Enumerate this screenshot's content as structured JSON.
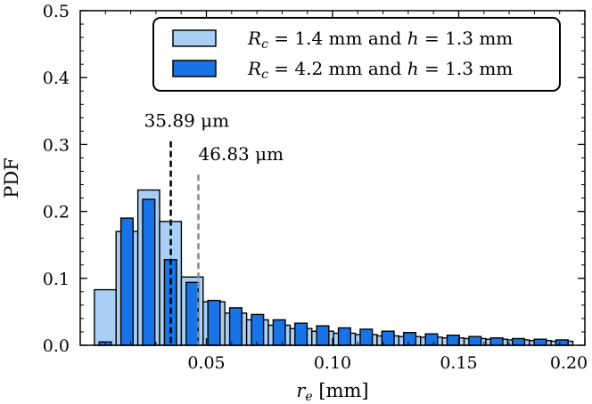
{
  "chart_data": {
    "type": "bar",
    "xlabel": "r_e [mm]",
    "ylabel": "PDF",
    "xlim": [
      0.0,
      0.2
    ],
    "ylim": [
      0.0,
      0.5
    ],
    "xticks": [
      0.05,
      0.1,
      0.15,
      0.2
    ],
    "xtick_labels": [
      "0.05",
      "0.10",
      "0.15",
      "0.20"
    ],
    "yticks": [
      0.0,
      0.1,
      0.2,
      0.3,
      0.4,
      0.5
    ],
    "ytick_labels": [
      "0.0",
      "0.1",
      "0.2",
      "0.3",
      "0.4",
      "0.5"
    ],
    "grid": false,
    "legend_position": "top-right",
    "series": [
      {
        "name": "R_c = 1.4 mm and h = 1.3 mm",
        "color": "#a9cff5",
        "bin_width": 0.00862,
        "bin_start": 0.0056,
        "values": [
          0.083,
          0.17,
          0.232,
          0.185,
          0.102,
          0.065,
          0.048,
          0.038,
          0.03,
          0.025,
          0.021,
          0.018,
          0.016,
          0.014,
          0.013,
          0.012,
          0.011,
          0.01,
          0.009,
          0.008,
          0.007,
          0.006
        ]
      },
      {
        "name": "R_c = 4.2 mm and h = 1.3 mm",
        "color": "#1874e6",
        "bin_width": 0.00862,
        "bin_start": 0.0056,
        "values": [
          0.005,
          0.19,
          0.218,
          0.128,
          0.094,
          0.067,
          0.056,
          0.046,
          0.038,
          0.033,
          0.029,
          0.026,
          0.024,
          0.021,
          0.019,
          0.017,
          0.015,
          0.013,
          0.011,
          0.01,
          0.009,
          0.008
        ]
      }
    ],
    "annotations": [
      {
        "label": "35.89 μm",
        "x": 0.03589,
        "y_top": 0.305,
        "color": "#000000",
        "style": "dashed"
      },
      {
        "label": "46.83 μm",
        "x": 0.04683,
        "y_top": 0.255,
        "color": "#888888",
        "style": "dashed"
      }
    ]
  }
}
